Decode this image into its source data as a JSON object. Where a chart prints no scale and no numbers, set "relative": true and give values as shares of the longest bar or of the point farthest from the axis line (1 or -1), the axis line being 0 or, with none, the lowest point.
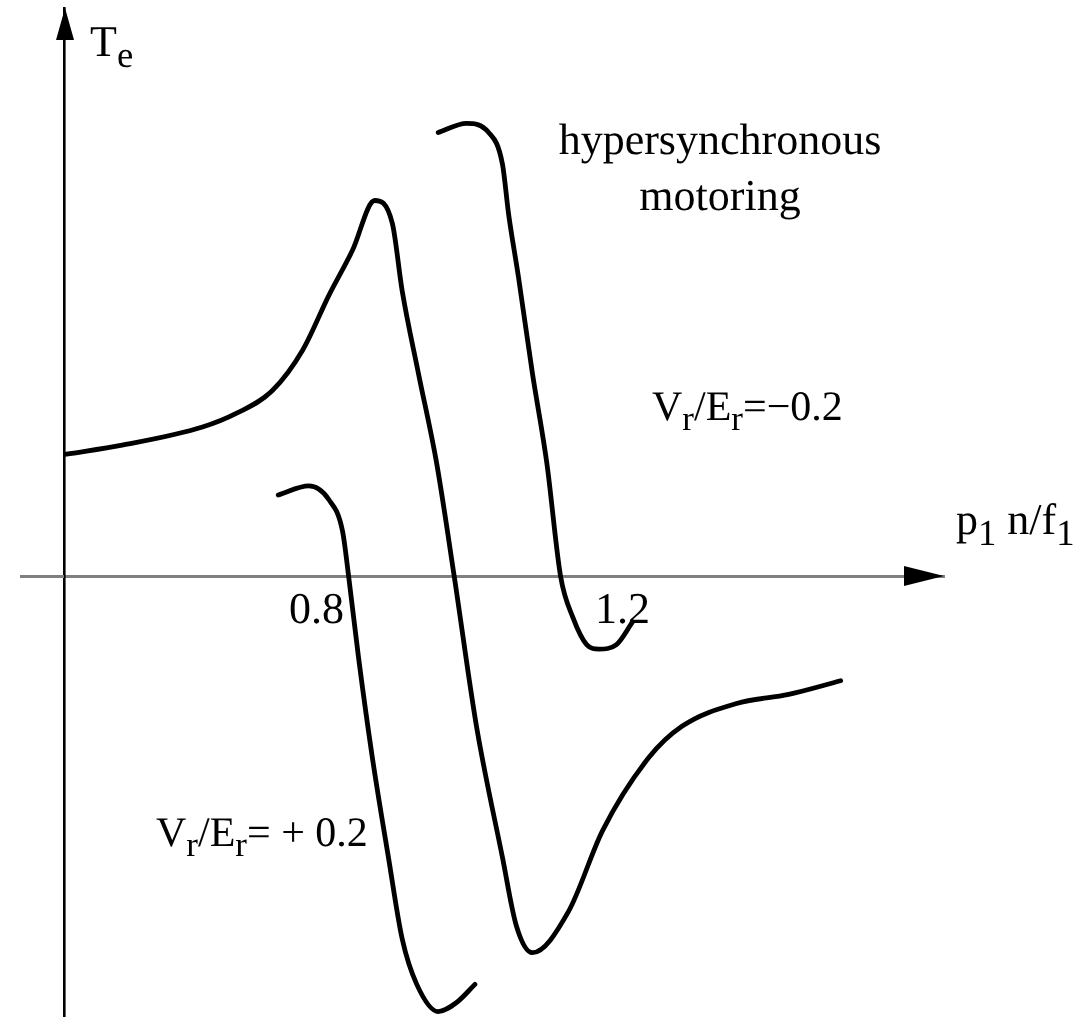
{
  "chart_data": {
    "type": "line",
    "xlabel": "p$_{1}$ n/f$_{1}$",
    "ylabel": "T$_{e}$",
    "relative": true,
    "xlim": [
      0.47,
      1.62
    ],
    "xticks": [
      0.8,
      1.2
    ],
    "tick_labels": "x",
    "grid": false,
    "marker": "none",
    "annotations": [
      "hypersynchronous motoring"
    ],
    "series": [
      {
        "color": "#000000",
        "x": [
          0.473,
          0.546,
          0.651,
          0.695,
          0.742,
          0.782,
          0.816,
          0.847,
          0.876,
          0.899,
          0.912,
          0.933,
          0.957,
          0.98,
          1.009,
          1.043,
          1.061,
          1.082,
          1.129,
          1.174,
          1.234,
          1.278,
          1.349,
          1.417,
          1.485
        ],
        "values": [
          0.27,
          0.29,
          0.33,
          0.36,
          0.41,
          0.5,
          0.62,
          0.72,
          0.83,
          0.78,
          0.63,
          0.45,
          0.25,
          0,
          -0.33,
          -0.62,
          -0.77,
          -0.83,
          -0.74,
          -0.56,
          -0.4,
          -0.33,
          -0.28,
          -0.26,
          -0.23
        ]
      },
      {
        "name": "V$_{r}$/E$_{r}$=−0.2",
        "color": "#000000",
        "x": [
          0.959,
          0.996,
          1.025,
          1.043,
          1.051,
          1.064,
          1.082,
          1.101,
          1.119,
          1.135,
          1.153,
          1.169,
          1.192,
          1.213
        ],
        "values": [
          0.98,
          1,
          0.98,
          0.91,
          0.8,
          0.66,
          0.45,
          0.25,
          0,
          -0.09,
          -0.15,
          -0.16,
          -0.15,
          -0.1
        ]
      },
      {
        "name": "V$_{r}$/E$_{r}$= + 0.2",
        "color": "#000000",
        "x": [
          0.75,
          0.79,
          0.816,
          0.834,
          0.842,
          0.855,
          0.873,
          0.894,
          0.912,
          0.931,
          0.959,
          0.983,
          1.007
        ],
        "values": [
          0.18,
          0.2,
          0.17,
          0.1,
          0,
          -0.18,
          -0.4,
          -0.62,
          -0.8,
          -0.9,
          -0.96,
          -0.94,
          -0.9
        ]
      }
    ]
  }
}
